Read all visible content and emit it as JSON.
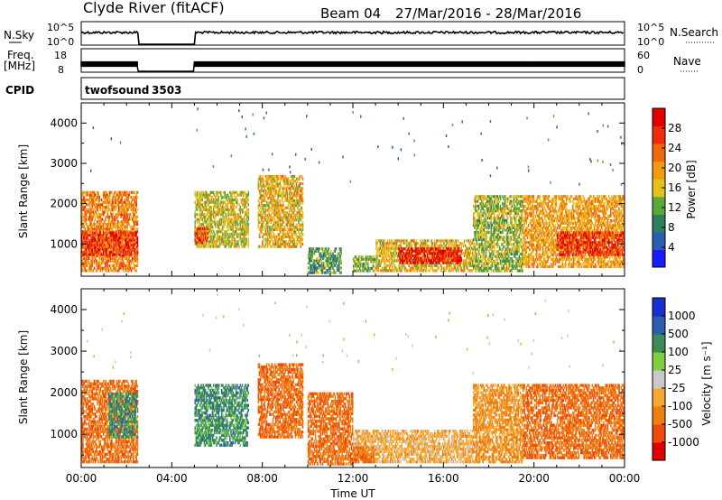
{
  "header": {
    "title": "Clyde River (fitACF)",
    "beam": "Beam 04",
    "date_range": "27/Mar/2016 - 28/Mar/2016"
  },
  "noise_panel": {
    "left_label": "N.Sky",
    "left_ticks": [
      "10^5",
      "10^0"
    ],
    "right_label": "N.Search",
    "right_ticks": [
      "10^5",
      "10^0"
    ]
  },
  "freq_panel": {
    "left_label_1": "Freq.",
    "left_label_2": "[MHz]",
    "left_ticks": [
      "18",
      "8"
    ],
    "right_label": "Nave",
    "right_ticks": [
      "60",
      "0"
    ]
  },
  "cpid_panel": {
    "label": "CPID",
    "program": "twofsound",
    "cpid": "3503"
  },
  "colors": {
    "power_scale": [
      "#1a1aff",
      "#2a5db0",
      "#2f7e5a",
      "#5aa83c",
      "#e3c21c",
      "#f29a12",
      "#f06a0c",
      "#f02a0c",
      "#e00000"
    ],
    "velocity_scale": [
      "#e00000",
      "#f04a0a",
      "#f07e10",
      "#f7a830",
      "#c9c9c9",
      "#7fcf3e",
      "#3a8c5a",
      "#2a5db0",
      "#1a2fd0"
    ]
  },
  "chart_data": [
    {
      "type": "heatmap",
      "name": "power",
      "ylabel": "Slant Range [km]",
      "ylim": [
        200,
        4500
      ],
      "yticks": [
        "1000",
        "2000",
        "3000",
        "4000"
      ],
      "xlim": [
        "00:00",
        "24:00"
      ],
      "colorbar_label": "Power [dB]",
      "colorbar_ticks": [
        "4",
        "8",
        "12",
        "16",
        "20",
        "24",
        "28"
      ],
      "colorbar_range": [
        0,
        32
      ],
      "data_gap_hours": [
        [
          2.5,
          5.0
        ]
      ],
      "patches": [
        {
          "t0": 0.0,
          "t1": 2.5,
          "r0": 300,
          "r1": 2300,
          "level": 22
        },
        {
          "t0": 0.0,
          "t1": 2.5,
          "r0": 700,
          "r1": 1300,
          "level": 28
        },
        {
          "t0": 5.0,
          "t1": 7.4,
          "r0": 900,
          "r1": 2300,
          "level": 16
        },
        {
          "t0": 5.0,
          "t1": 5.6,
          "r0": 1000,
          "r1": 1400,
          "level": 26
        },
        {
          "t0": 7.8,
          "t1": 9.8,
          "r0": 900,
          "r1": 2700,
          "level": 18
        },
        {
          "t0": 10.0,
          "t1": 11.5,
          "r0": 250,
          "r1": 900,
          "level": 10
        },
        {
          "t0": 12.0,
          "t1": 13.0,
          "r0": 300,
          "r1": 700,
          "level": 12
        },
        {
          "t0": 13.0,
          "t1": 17.3,
          "r0": 300,
          "r1": 1100,
          "level": 18
        },
        {
          "t0": 14.0,
          "t1": 16.8,
          "r0": 500,
          "r1": 900,
          "level": 30
        },
        {
          "t0": 17.3,
          "t1": 19.5,
          "r0": 300,
          "r1": 2200,
          "level": 14
        },
        {
          "t0": 19.5,
          "t1": 24.0,
          "r0": 400,
          "r1": 2200,
          "level": 20
        },
        {
          "t0": 21.0,
          "t1": 24.0,
          "r0": 700,
          "r1": 1300,
          "level": 28
        }
      ]
    },
    {
      "type": "heatmap",
      "name": "velocity",
      "ylabel": "Slant Range [km]",
      "ylim": [
        200,
        4500
      ],
      "yticks": [
        "1000",
        "2000",
        "3000",
        "4000"
      ],
      "xlim": [
        "00:00",
        "24:00"
      ],
      "xticks": [
        "00:00",
        "04:00",
        "08:00",
        "12:00",
        "16:00",
        "20:00",
        "00:00"
      ],
      "xlabel": "Time UT",
      "colorbar_label": "Velocity [m s⁻¹]",
      "colorbar_ticks": [
        "1000",
        "500",
        "100",
        "25",
        "-25",
        "-100",
        "-500",
        "-1000"
      ],
      "data_gap_hours": [
        [
          2.5,
          5.0
        ]
      ],
      "patches": [
        {
          "t0": 0.0,
          "t1": 2.5,
          "r0": 300,
          "r1": 2300,
          "class": "-200"
        },
        {
          "t0": 1.2,
          "t1": 2.5,
          "r0": 900,
          "r1": 2000,
          "class": "200"
        },
        {
          "t0": 5.0,
          "t1": 7.4,
          "r0": 700,
          "r1": 2200,
          "class": "200"
        },
        {
          "t0": 7.8,
          "t1": 9.8,
          "r0": 900,
          "r1": 2700,
          "class": "-300"
        },
        {
          "t0": 10.0,
          "t1": 12.0,
          "r0": 250,
          "r1": 2000,
          "class": "-400"
        },
        {
          "t0": 12.0,
          "t1": 17.3,
          "r0": 300,
          "r1": 1100,
          "class": "-80"
        },
        {
          "t0": 12.0,
          "t1": 13.0,
          "r0": 300,
          "r1": 700,
          "class": "-200"
        },
        {
          "t0": 17.3,
          "t1": 19.5,
          "r0": 300,
          "r1": 2200,
          "class": "-150"
        },
        {
          "t0": 19.5,
          "t1": 24.0,
          "r0": 400,
          "r1": 2200,
          "class": "-300"
        }
      ]
    }
  ]
}
